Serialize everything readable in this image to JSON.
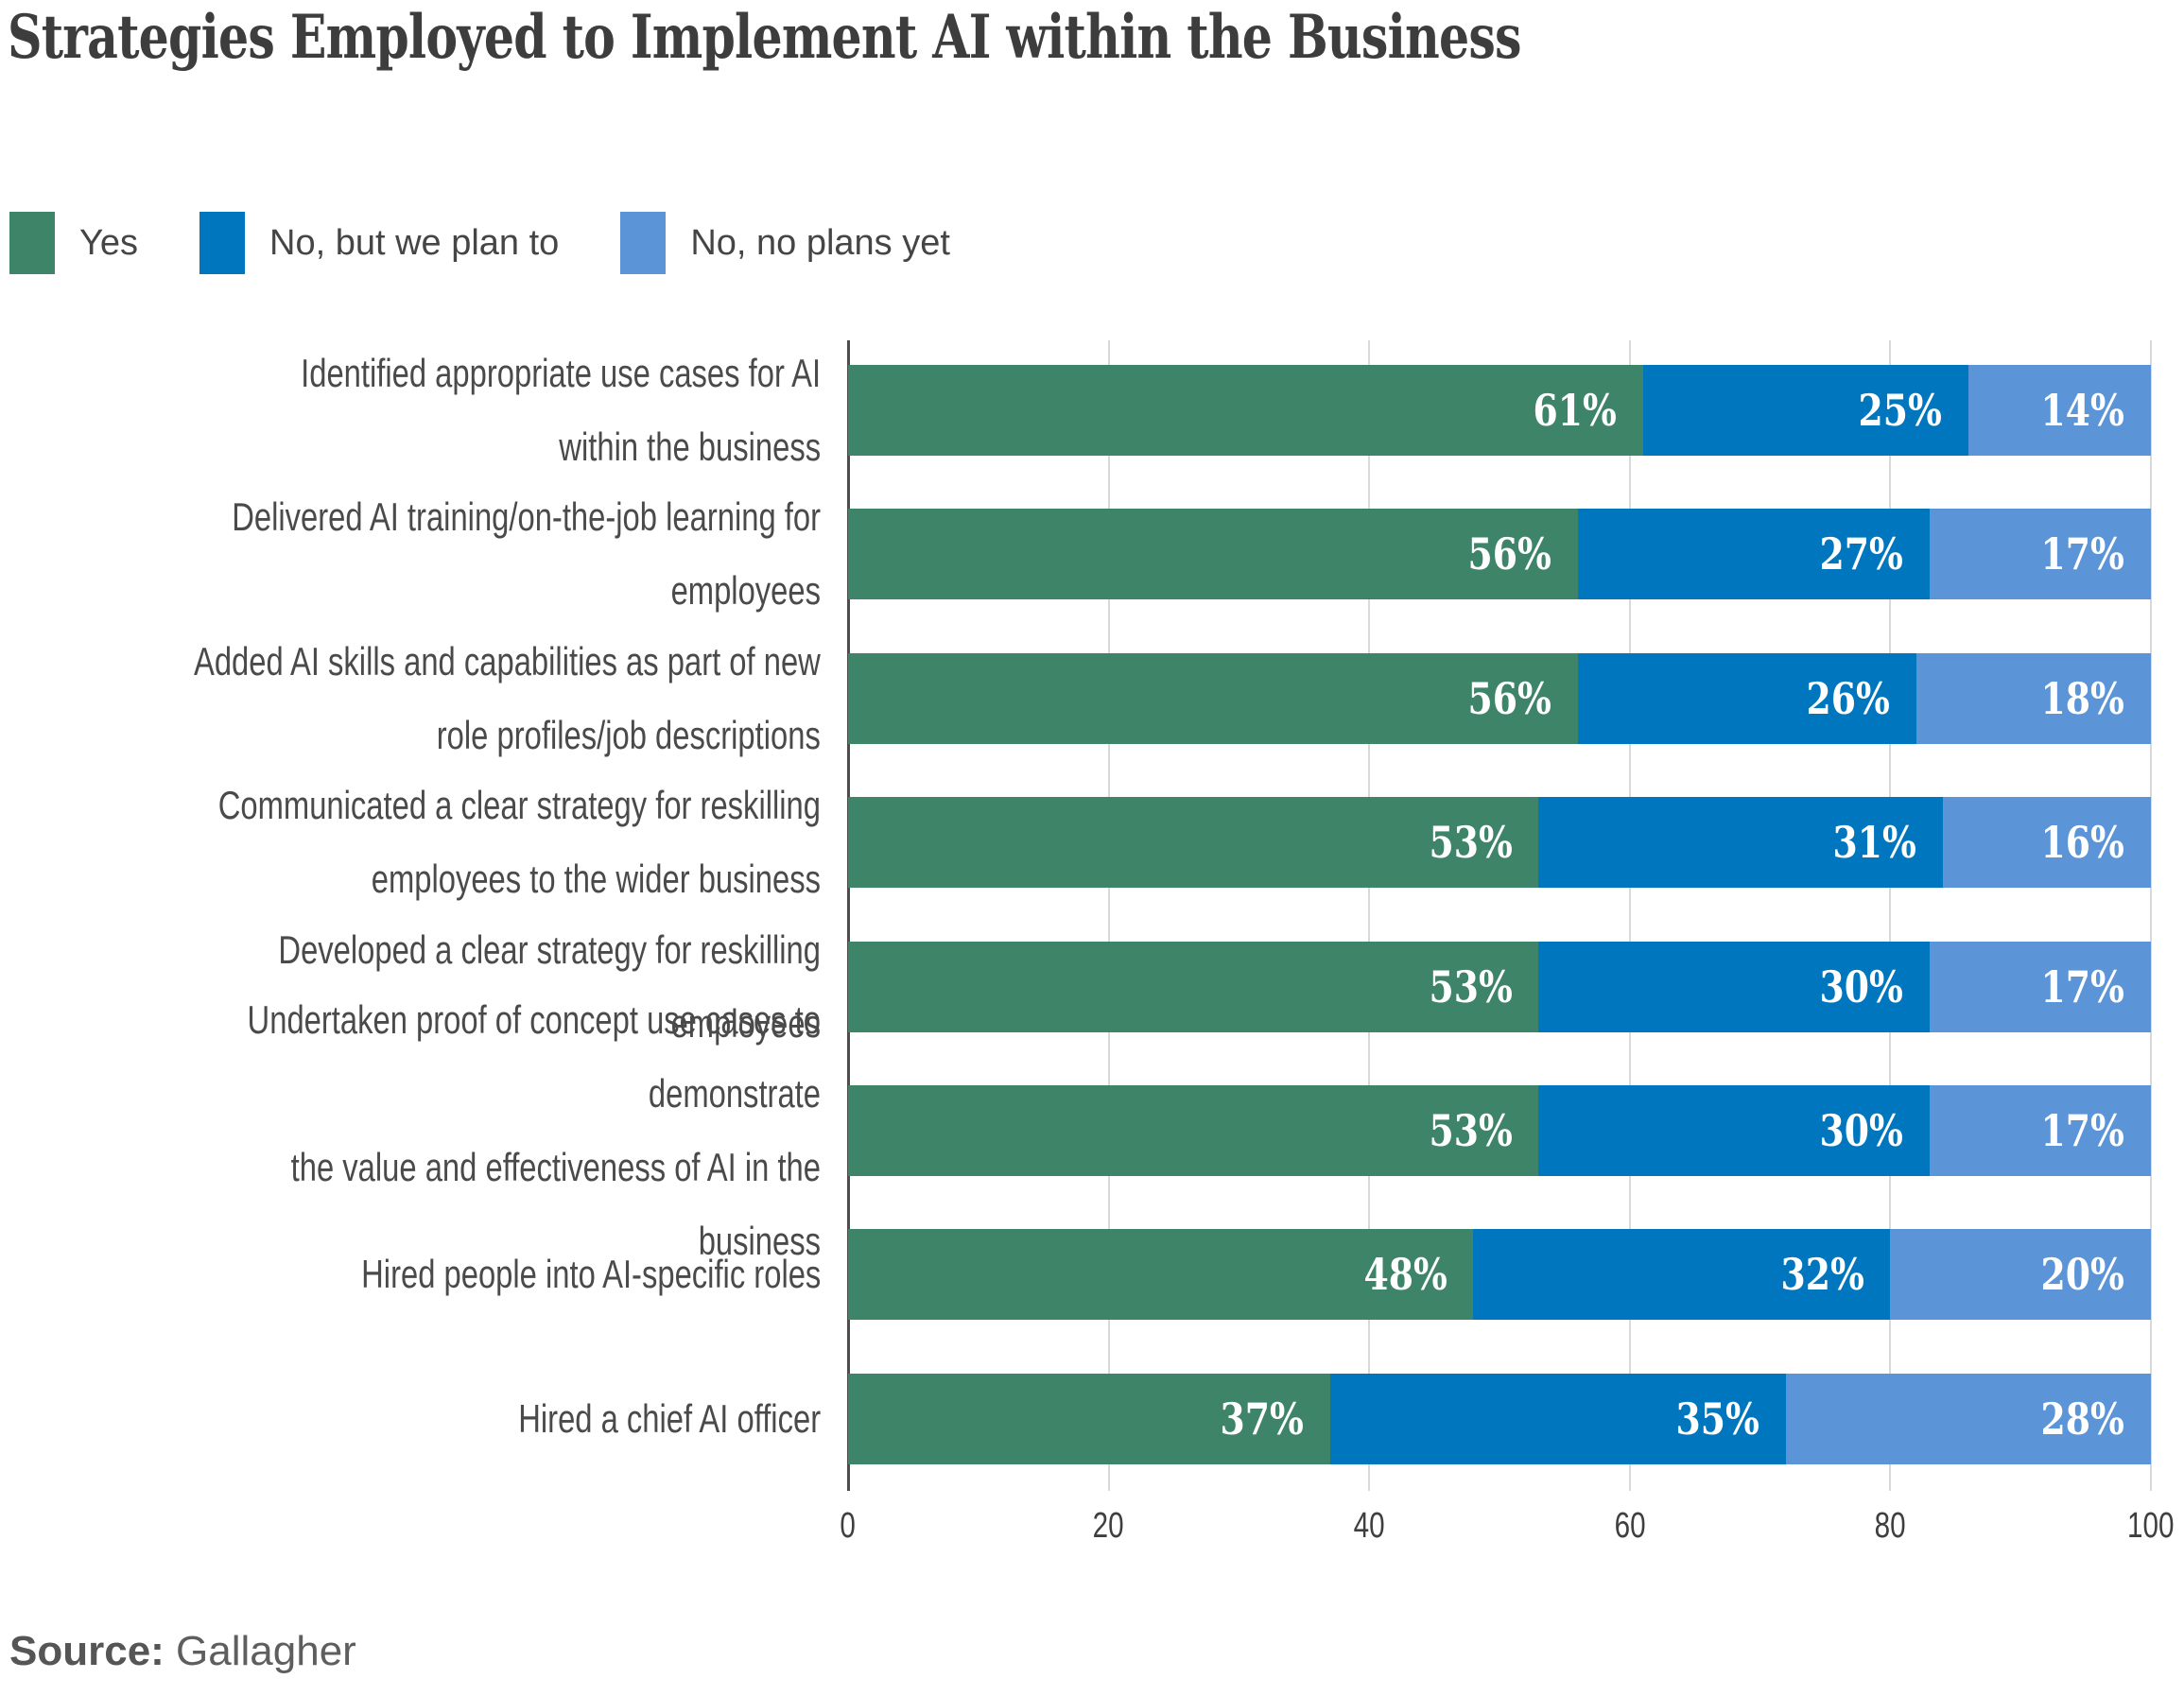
{
  "title": "Strategies Employed to Implement AI within the Business",
  "legend": [
    {
      "label": "Yes",
      "color": "#3E8468"
    },
    {
      "label": "No, but we plan to",
      "color": "#0076BE"
    },
    {
      "label": "No, no plans yet",
      "color": "#5B94D7"
    }
  ],
  "source": {
    "prefix": "Source:",
    "text": " Gallagher"
  },
  "chart_data": {
    "type": "bar",
    "orientation": "horizontal",
    "stacked": true,
    "title": "Strategies Employed to Implement AI within the Business",
    "xlabel": "",
    "ylabel": "",
    "xlim": [
      0,
      100
    ],
    "xticks": [
      0,
      20,
      40,
      60,
      80,
      100
    ],
    "grid": "vertical",
    "legend_position": "top-left",
    "value_suffix": "%",
    "categories": [
      "Identified appropriate use cases for AI\nwithin the business",
      "Delivered AI training/on-the-job learning for employees",
      "Added AI skills and capabilities as part of new\nrole profiles/job descriptions",
      "Communicated a clear strategy for reskilling\nemployees to the wider business",
      "Developed a clear strategy for reskilling employees",
      "Undertaken proof of concept use cases to demonstrate\nthe value and effectiveness of AI in the business",
      "Hired people into AI-specific roles",
      "Hired a chief AI officer"
    ],
    "series": [
      {
        "name": "Yes",
        "color": "#3E8468",
        "values": [
          61,
          56,
          56,
          53,
          53,
          53,
          48,
          37
        ]
      },
      {
        "name": "No, but we plan to",
        "color": "#0076BE",
        "values": [
          25,
          27,
          26,
          31,
          30,
          30,
          32,
          35
        ]
      },
      {
        "name": "No, no plans yet",
        "color": "#5B94D7",
        "values": [
          14,
          17,
          18,
          16,
          17,
          17,
          20,
          28
        ]
      }
    ]
  }
}
